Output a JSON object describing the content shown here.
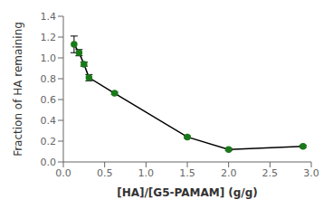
{
  "chart_data": {
    "type": "line",
    "xlabel": "[HA]/[G5-PAMAM] (g/g)",
    "ylabel": "Fraction of HA remaining",
    "x": [
      0.13,
      0.19,
      0.25,
      0.31,
      0.62,
      1.5,
      2.0,
      2.9
    ],
    "values": [
      1.13,
      1.05,
      0.94,
      0.81,
      0.66,
      0.24,
      0.12,
      0.15
    ],
    "yerr": [
      0.08,
      0.03,
      0.02,
      0.03,
      0.01,
      0.01,
      0.01,
      0.01
    ],
    "color": "#000000",
    "marker": "circle",
    "marker_color": "#1a7a1a",
    "xlim": [
      0.0,
      3.0
    ],
    "ylim": [
      0.0,
      1.4
    ],
    "xticks": [
      {
        "value": 0.0,
        "label": "0.0"
      },
      0.5,
      {
        "value": 1.0,
        "label": "1.0"
      },
      1.5,
      {
        "value": 2.0,
        "label": "2.0"
      },
      2.5,
      {
        "value": 3.0,
        "label": "3.0"
      }
    ],
    "yticks": [
      {
        "value": 0.0,
        "label": "0.0"
      },
      0.2,
      0.4,
      0.6,
      0.8,
      {
        "value": 1.0,
        "label": "1.0"
      },
      1.2,
      1.4
    ],
    "grid": false
  }
}
